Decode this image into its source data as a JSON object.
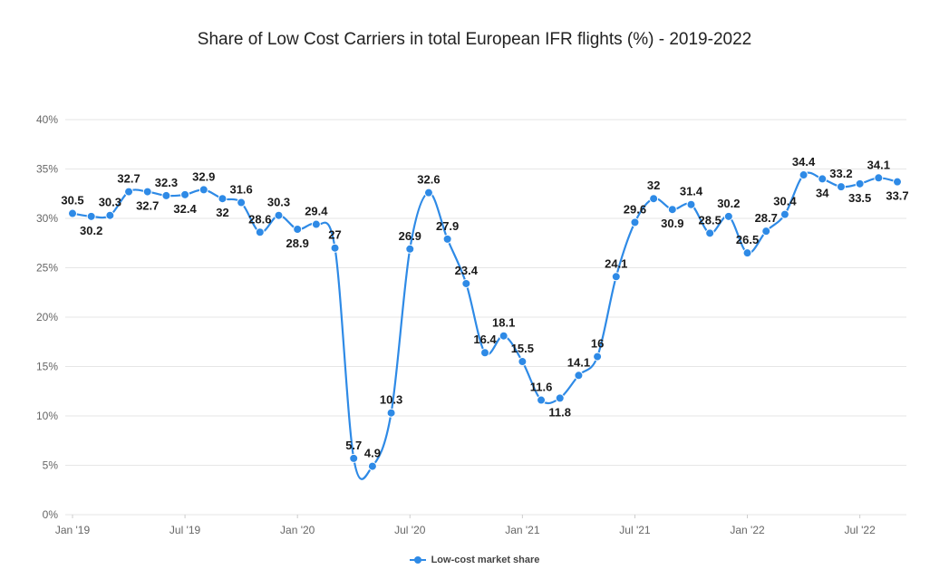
{
  "chart_data": {
    "type": "line",
    "title": "Share of Low Cost Carriers in total European IFR flights (%) - 2019-2022",
    "xlabel": "",
    "ylabel": "",
    "ylim": [
      0,
      40
    ],
    "yticks": [
      "0%",
      "5%",
      "10%",
      "15%",
      "20%",
      "25%",
      "30%",
      "35%",
      "40%"
    ],
    "xtick_labels": [
      "Jan '19",
      "Jul '19",
      "Jan '20",
      "Jul '20",
      "Jan '21",
      "Jul '21",
      "Jan '22",
      "Jul '22"
    ],
    "xtick_index": [
      0,
      6,
      12,
      18,
      24,
      30,
      36,
      42
    ],
    "series": [
      {
        "name": "Low-cost market share",
        "color": "#2e8ae6",
        "values": [
          30.5,
          30.2,
          30.3,
          32.7,
          32.7,
          32.3,
          32.4,
          32.9,
          32,
          31.6,
          28.6,
          30.3,
          28.9,
          29.4,
          27,
          5.7,
          4.9,
          10.3,
          26.9,
          32.6,
          27.9,
          23.4,
          16.4,
          18.1,
          15.5,
          11.6,
          11.8,
          14.1,
          16,
          24.1,
          29.6,
          32,
          30.9,
          31.4,
          28.5,
          30.2,
          26.5,
          28.7,
          30.4,
          34.4,
          34,
          33.2,
          33.5,
          34.1,
          33.7
        ],
        "label_pos": [
          "a",
          "b",
          "a",
          "a",
          "b",
          "a",
          "b",
          "a",
          "b",
          "a",
          "a",
          "a",
          "b",
          "a",
          "a",
          "a",
          "a",
          "a",
          "a",
          "a",
          "a",
          "a",
          "a",
          "a",
          "a",
          "a",
          "b",
          "a",
          "a",
          "a",
          "a",
          "a",
          "b",
          "a",
          "a",
          "a",
          "a",
          "a",
          "a",
          "a",
          "b",
          "a",
          "b",
          "a",
          "b"
        ]
      }
    ],
    "legend": {
      "position": "bottom-center",
      "label": "Low-cost market share"
    }
  }
}
